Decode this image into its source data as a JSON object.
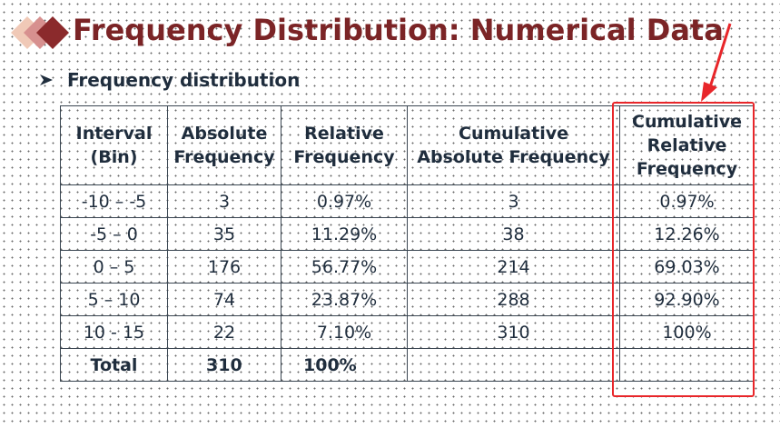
{
  "title": "Frequency Distribution: Numerical Data",
  "bullet": "Frequency distribution",
  "table": {
    "headers": [
      [
        "Interval",
        "(Bin)"
      ],
      [
        "Absolute",
        "Frequency"
      ],
      [
        "Relative",
        "Frequency"
      ],
      [
        "Cumulative",
        "Absolute Frequency"
      ],
      [
        "Cumulative",
        "Relative",
        "Frequency"
      ]
    ],
    "rows": [
      [
        "-10 – -5",
        "3",
        "0.97%",
        "3",
        "0.97%"
      ],
      [
        "-5 – 0",
        "35",
        "11.29%",
        "38",
        "12.26%"
      ],
      [
        "0 – 5",
        "176",
        "56.77%",
        "214",
        "69.03%"
      ],
      [
        "5 – 10",
        "74",
        "23.87%",
        "288",
        "92.90%"
      ],
      [
        "10 - 15",
        "22",
        "7.10%",
        "310",
        "100%"
      ]
    ],
    "total": [
      "Total",
      "310",
      "100%",
      "",
      ""
    ]
  },
  "colors": {
    "title": "#7b2426",
    "text": "#1f2d3d",
    "highlight": "#e8262a",
    "diamond_dark": "#8b2a2c",
    "diamond_mid": "#d7908f",
    "diamond_light": "#f0c9b7"
  },
  "icons": {
    "bullet": "arrowhead-bullet-icon",
    "decoration": "diamond-cluster-icon",
    "annotation": "red-arrow-icon"
  }
}
